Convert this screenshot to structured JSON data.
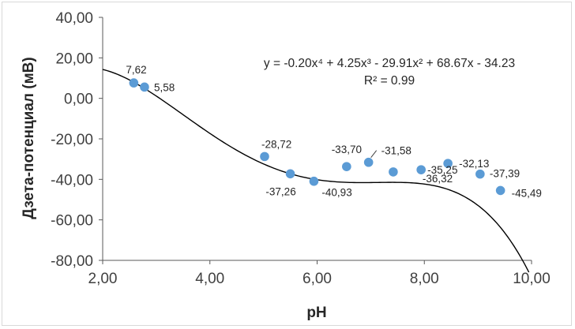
{
  "chart_data": {
    "type": "scatter",
    "title": "",
    "xlabel": "pH",
    "ylabel": "Дзета-потенциал (мВ)",
    "xlim": [
      2,
      10
    ],
    "ylim": [
      -80,
      40
    ],
    "x_ticks": [
      "2,00",
      "4,00",
      "6,00",
      "8,00",
      "10,00"
    ],
    "y_ticks": [
      "40,00",
      "20,00",
      "0,00",
      "-20,00",
      "-40,00",
      "-60,00",
      "-80,00"
    ],
    "series": [
      {
        "name": "Дзета-потенциал",
        "color": "#5b9bd5",
        "points": [
          {
            "x": 2.58,
            "y": 7.62,
            "label": "7,62"
          },
          {
            "x": 2.78,
            "y": 5.58,
            "label": "5,58"
          },
          {
            "x": 5.02,
            "y": -28.72,
            "label": "-28,72"
          },
          {
            "x": 5.5,
            "y": -37.26,
            "label": "-37,26"
          },
          {
            "x": 5.94,
            "y": -40.93,
            "label": "-40,93"
          },
          {
            "x": 6.55,
            "y": -33.7,
            "label": "-33,70"
          },
          {
            "x": 6.96,
            "y": -31.58,
            "label": "-31,58"
          },
          {
            "x": 7.42,
            "y": -36.32,
            "label": "-36,32"
          },
          {
            "x": 7.94,
            "y": -35.25,
            "label": "-35,25"
          },
          {
            "x": 8.44,
            "y": -32.13,
            "label": "-32,13"
          },
          {
            "x": 9.04,
            "y": -37.39,
            "label": "-37,39"
          },
          {
            "x": 9.42,
            "y": -45.49,
            "label": "-45,49"
          }
        ]
      }
    ],
    "trendline": {
      "type": "polynomial",
      "order": 4,
      "coefficients": [
        -0.2,
        4.25,
        -29.91,
        68.67,
        -34.23
      ],
      "x_range": [
        2.0,
        9.95
      ],
      "color": "#000000",
      "equation": "y = -0.20x⁴ + 4.25x³ - 29.91x² + 68.67x - 34.23",
      "r_squared_text": "R² = 0.99"
    },
    "legend": "none",
    "grid": false
  }
}
